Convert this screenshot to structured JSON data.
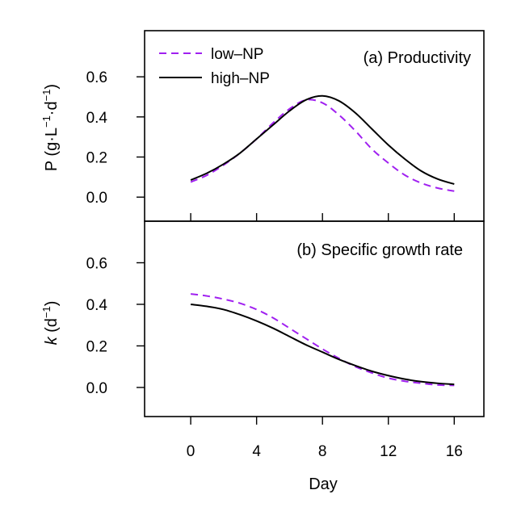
{
  "chart_data": {
    "type": "line",
    "xlabel": "Day",
    "x_ticks": [
      "0",
      "4",
      "8",
      "12",
      "16"
    ],
    "xlim": [
      -2.8,
      17.8
    ],
    "legend": {
      "placement": "top-left of panel (a)",
      "entries": [
        {
          "label": "low–NP",
          "color": "#a020f0",
          "style": "dashed"
        },
        {
          "label": "high–NP",
          "color": "#000000",
          "style": "solid"
        }
      ]
    },
    "panels": [
      {
        "title": "(a) Productivity",
        "ylabel_prefix": "P (g·L",
        "ylabel_sup1": "−1",
        "ylabel_mid": "·d",
        "ylabel_sup2": "−1",
        "ylabel_suffix": ")",
        "y_ticks": [
          "0.0",
          "0.2",
          "0.4",
          "0.6"
        ],
        "ylim": [
          -0.12,
          0.83
        ],
        "series": [
          {
            "name": "low–NP",
            "color": "#a020f0",
            "dash": true,
            "x": [
              0,
              1,
              2,
              3,
              4,
              5,
              6,
              7,
              8,
              9,
              10,
              11,
              12,
              13,
              14,
              15,
              16
            ],
            "y": [
              0.075,
              0.11,
              0.16,
              0.22,
              0.29,
              0.37,
              0.44,
              0.485,
              0.47,
              0.41,
              0.33,
              0.24,
              0.17,
              0.11,
              0.07,
              0.045,
              0.03
            ]
          },
          {
            "name": "high–NP",
            "color": "#000000",
            "dash": false,
            "x": [
              0,
              1,
              2,
              3,
              4,
              5,
              6,
              7,
              8,
              9,
              10,
              11,
              12,
              13,
              14,
              15,
              16
            ],
            "y": [
              0.085,
              0.12,
              0.165,
              0.22,
              0.29,
              0.36,
              0.43,
              0.485,
              0.505,
              0.48,
              0.42,
              0.34,
              0.26,
              0.19,
              0.13,
              0.09,
              0.065
            ]
          }
        ]
      },
      {
        "title": "(b) Specific growth rate",
        "ylabel_prefix": "k",
        "ylabel_sup1": "",
        "ylabel_mid": " (d",
        "ylabel_sup2": "−1",
        "ylabel_suffix": ")",
        "y_ticks": [
          "0.0",
          "0.2",
          "0.4",
          "0.6"
        ],
        "ylim": [
          -0.14,
          0.8
        ],
        "series": [
          {
            "name": "low–NP",
            "color": "#a020f0",
            "dash": true,
            "x": [
              0,
              1,
              2,
              3,
              4,
              5,
              6,
              7,
              8,
              9,
              10,
              11,
              12,
              13,
              14,
              15,
              16
            ],
            "y": [
              0.45,
              0.44,
              0.425,
              0.405,
              0.375,
              0.335,
              0.285,
              0.235,
              0.185,
              0.14,
              0.1,
              0.07,
              0.045,
              0.03,
              0.02,
              0.012,
              0.01
            ]
          },
          {
            "name": "high–NP",
            "color": "#000000",
            "dash": false,
            "x": [
              0,
              1,
              2,
              3,
              4,
              5,
              6,
              7,
              8,
              9,
              10,
              11,
              12,
              13,
              14,
              15,
              16
            ],
            "y": [
              0.4,
              0.39,
              0.375,
              0.35,
              0.32,
              0.285,
              0.245,
              0.205,
              0.17,
              0.135,
              0.105,
              0.078,
              0.057,
              0.04,
              0.028,
              0.02,
              0.015
            ]
          }
        ]
      }
    ]
  }
}
